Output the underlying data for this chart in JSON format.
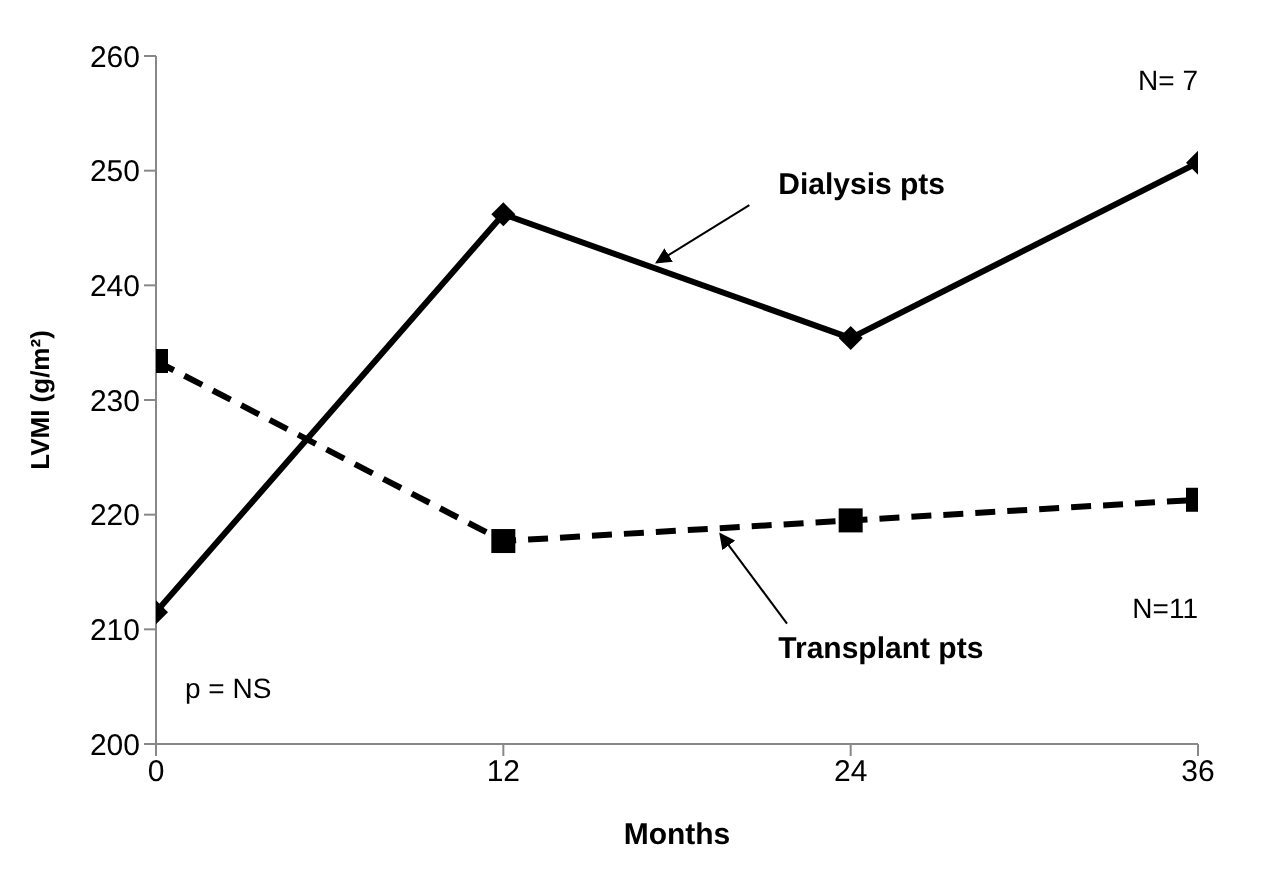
{
  "chart_data": {
    "type": "line",
    "xlabel": "Months",
    "ylabel": "LVMI (g/m²)",
    "x": [
      0,
      12,
      24,
      36
    ],
    "xlim": [
      0,
      36
    ],
    "xticks": [
      0,
      12,
      24,
      36
    ],
    "ylim": [
      200,
      260
    ],
    "yticks": [
      200,
      210,
      220,
      230,
      240,
      250,
      260
    ],
    "grid": false,
    "legend": false,
    "series": [
      {
        "name": "Dialysis pts",
        "color": "#000000",
        "values": [
          211.5,
          246.2,
          235.4,
          250.7
        ],
        "marker": "diamond",
        "line_style": "solid"
      },
      {
        "name": "Transplant pts",
        "color": "#000000",
        "values": [
          233.4,
          217.7,
          219.5,
          221.3
        ],
        "marker": "square",
        "line_style": "dashed"
      }
    ],
    "annotations": [
      "N= 7",
      "N=11",
      "p = NS"
    ]
  }
}
